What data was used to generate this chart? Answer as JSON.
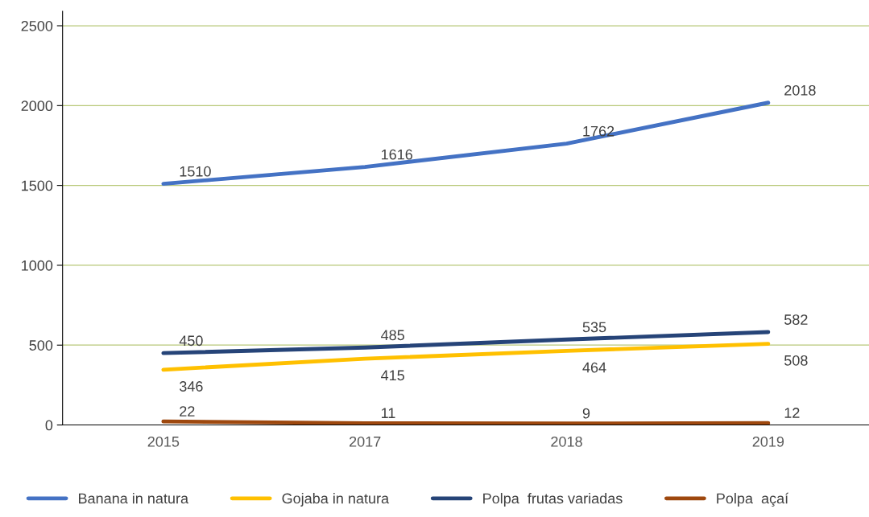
{
  "chart_data": {
    "type": "line",
    "categories": [
      "2015",
      "2017",
      "2018",
      "2019"
    ],
    "series": [
      {
        "name": "Banana in natura",
        "color": "#4472c4",
        "values": [
          1510,
          1616,
          1762,
          2018
        ]
      },
      {
        "name": "Gojaba in natura",
        "color": "#ffc000",
        "values": [
          346,
          415,
          464,
          508
        ]
      },
      {
        "name": "Polpa  frutas variadas",
        "color": "#264478",
        "values": [
          450,
          485,
          535,
          582
        ]
      },
      {
        "name": "Polpa  açaí",
        "color": "#9e480e",
        "values": [
          22,
          11,
          9,
          12
        ]
      }
    ],
    "ylim": [
      0,
      2590
    ],
    "yticks": [
      0,
      500,
      1000,
      1500,
      2000,
      2500
    ],
    "grid": "y",
    "legend": "bottom",
    "data_labels": true,
    "marker": "none",
    "line_style": "solid"
  }
}
